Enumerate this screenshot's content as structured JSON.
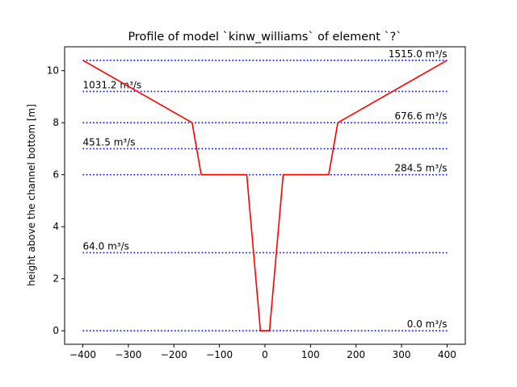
{
  "chart_data": {
    "type": "line",
    "title": "Profile of model `kinw_williams` of element `?`",
    "xlabel": "",
    "ylabel": "height above the channel bottom [m]",
    "xlim": [
      -440,
      440
    ],
    "ylim": [
      -0.52,
      10.92
    ],
    "x_ticks": [
      -400,
      -300,
      -200,
      -100,
      0,
      100,
      200,
      300,
      400
    ],
    "y_ticks": [
      0,
      2,
      4,
      6,
      8,
      10
    ],
    "grid": false,
    "legend": "none",
    "series": [
      {
        "style": "solid",
        "color": "#ff0000",
        "x": [
          -400,
          -160,
          -140,
          -40,
          -10,
          10,
          40,
          140,
          160,
          400
        ],
        "y": [
          10.4,
          8.0,
          6.0,
          6.0,
          0.0,
          0.0,
          6.0,
          6.0,
          8.0,
          10.4
        ]
      }
    ],
    "discharge_levels": {
      "style": "dotted",
      "color": "#0000ff",
      "x_range": [
        -400,
        400
      ],
      "levels": [
        {
          "height": 0.0,
          "label": "0.0 m³/s",
          "align": "right"
        },
        {
          "height": 3.0,
          "label": "64.0 m³/s",
          "align": "left"
        },
        {
          "height": 6.0,
          "label": "284.5 m³/s",
          "align": "right"
        },
        {
          "height": 7.0,
          "label": "451.5 m³/s",
          "align": "left"
        },
        {
          "height": 8.0,
          "label": "676.6 m³/s",
          "align": "right"
        },
        {
          "height": 9.2,
          "label": "1031.2 m³/s",
          "align": "left"
        },
        {
          "height": 10.4,
          "label": "1515.0 m³/s",
          "align": "right"
        }
      ]
    }
  }
}
